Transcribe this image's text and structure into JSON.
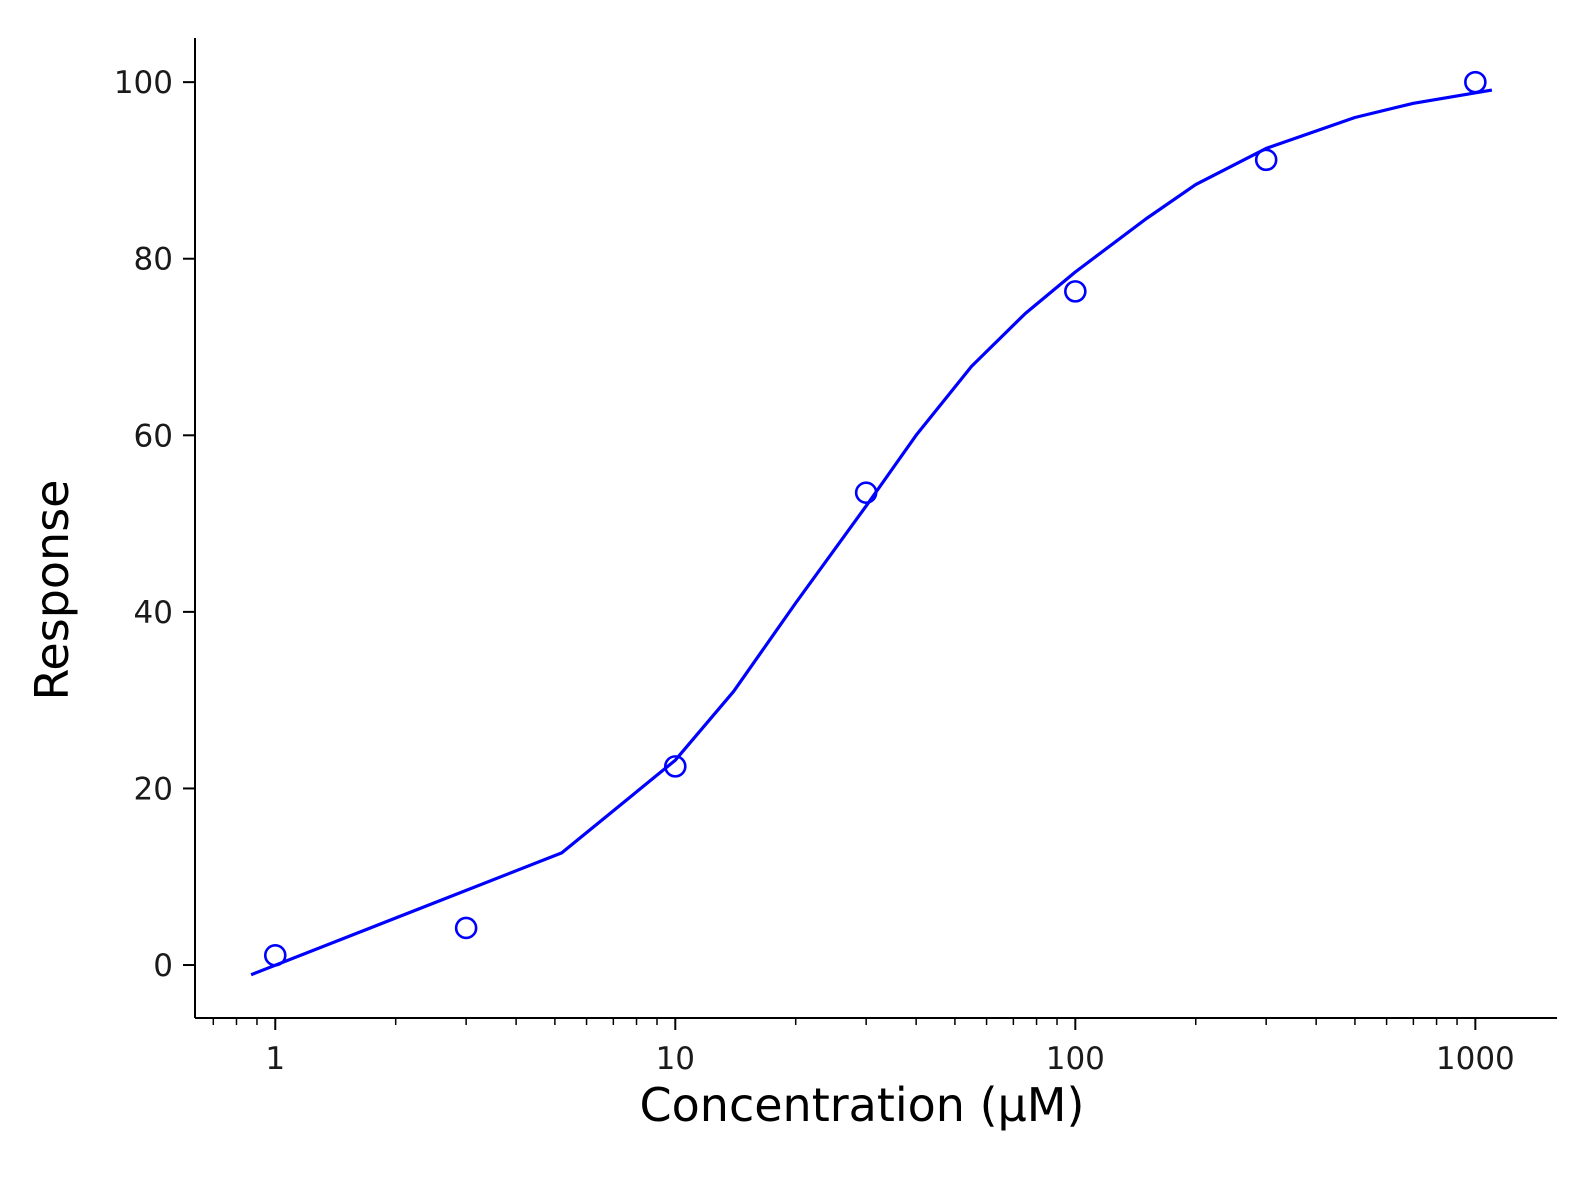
{
  "chart_data": {
    "type": "scatter",
    "title": "",
    "xlabel": "Concentration (μM)",
    "ylabel": "Response",
    "x_scale": "log",
    "xlim": [
      0.63,
      1600
    ],
    "ylim": [
      -6,
      105
    ],
    "x_ticks": [
      1,
      10,
      100,
      1000
    ],
    "x_tick_labels": [
      "1",
      "10",
      "100",
      "1000"
    ],
    "y_ticks": [
      0,
      20,
      40,
      60,
      80,
      100
    ],
    "y_tick_labels": [
      "0",
      "20",
      "40",
      "60",
      "80",
      "100"
    ],
    "grid": false,
    "legend": "none",
    "color": "#0000ff",
    "series": [
      {
        "kind": "points",
        "marker": "open-circle",
        "x": [
          1,
          3,
          10,
          30,
          100,
          300,
          1000
        ],
        "y": [
          1.1,
          4.2,
          22.5,
          53.5,
          76.3,
          91.2,
          100
        ]
      },
      {
        "kind": "fit-line",
        "x": [
          0.87,
          5.2,
          10,
          14,
          20,
          30,
          40,
          55,
          75,
          100,
          150,
          200,
          300,
          500,
          700,
          1100
        ],
        "y": [
          -1.1,
          12.7,
          23.2,
          31.0,
          41.0,
          52.0,
          60.0,
          67.8,
          73.8,
          78.5,
          84.5,
          88.4,
          92.5,
          96.0,
          97.6,
          99.1
        ]
      }
    ]
  }
}
